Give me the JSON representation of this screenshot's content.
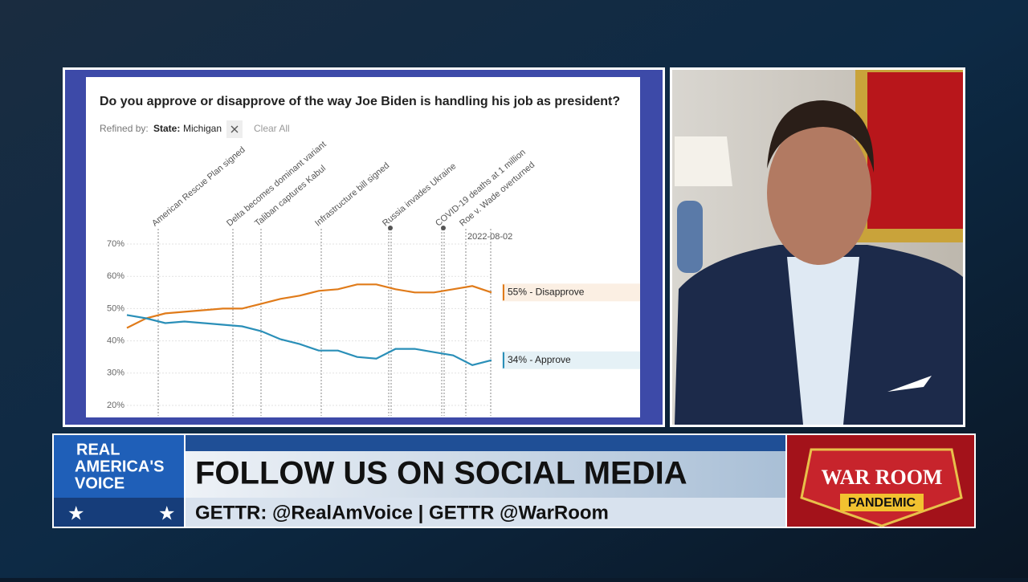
{
  "chart_data": {
    "type": "line",
    "title": "Do you approve or disapprove of the way Joe Biden is handling his job as president?",
    "refined_by": "Refined by:",
    "filter_key": "State:",
    "filter_value": "Michigan",
    "clear_all": "Clear All",
    "annotations": [
      "American Rescue Plan signed",
      "Delta becomes dominant variant",
      "Taliban captures Kabul",
      "Infrastructure bill signed",
      "Russia invades Ukraine",
      "COVID-19 deaths at 1 million",
      "Roe v. Wade overturned",
      "2022-08-02"
    ],
    "ylim": [
      20,
      70
    ],
    "yticks": [
      {
        "value": 20,
        "label": "20%"
      },
      {
        "value": 30,
        "label": "30%"
      },
      {
        "value": 40,
        "label": "40%"
      },
      {
        "value": 50,
        "label": "50%"
      },
      {
        "value": 60,
        "label": "60%"
      },
      {
        "value": 70,
        "label": "70%"
      }
    ],
    "grid": true,
    "series": [
      {
        "name": "Disapprove",
        "color": "#e07b1a",
        "values": [
          44,
          47,
          48.5,
          49,
          49.5,
          50,
          50,
          51.5,
          53,
          54,
          55.5,
          56,
          57.5,
          57.5,
          56,
          55,
          55,
          56,
          57,
          55
        ],
        "value_labels": [
          null,
          null,
          null,
          null,
          null,
          null,
          null,
          null,
          null,
          null,
          null,
          null,
          null,
          null,
          null,
          null,
          null,
          null,
          null,
          "55% - Disapprove"
        ]
      },
      {
        "name": "Approve",
        "color": "#2a8fb8",
        "values": [
          48,
          47,
          45.5,
          46,
          45.5,
          45,
          44.5,
          43,
          40.5,
          39,
          37,
          37,
          35,
          34.5,
          37.5,
          37.5,
          36.5,
          35.5,
          32.5,
          34
        ],
        "value_labels": [
          null,
          null,
          null,
          null,
          null,
          null,
          null,
          null,
          null,
          null,
          null,
          null,
          null,
          null,
          null,
          null,
          null,
          null,
          null,
          "34% - Approve"
        ]
      }
    ]
  },
  "lower_third": {
    "logo_line1": "REAL",
    "logo_line2": "AMERICA'S",
    "logo_line3": "VOICE",
    "headline": "FOLLOW US ON SOCIAL MEDIA",
    "subline": "GETTR: @RealAmVoice | GETTR @WarRoom",
    "badge_title": "WAR ROOM",
    "badge_sub": "PANDEMIC"
  }
}
